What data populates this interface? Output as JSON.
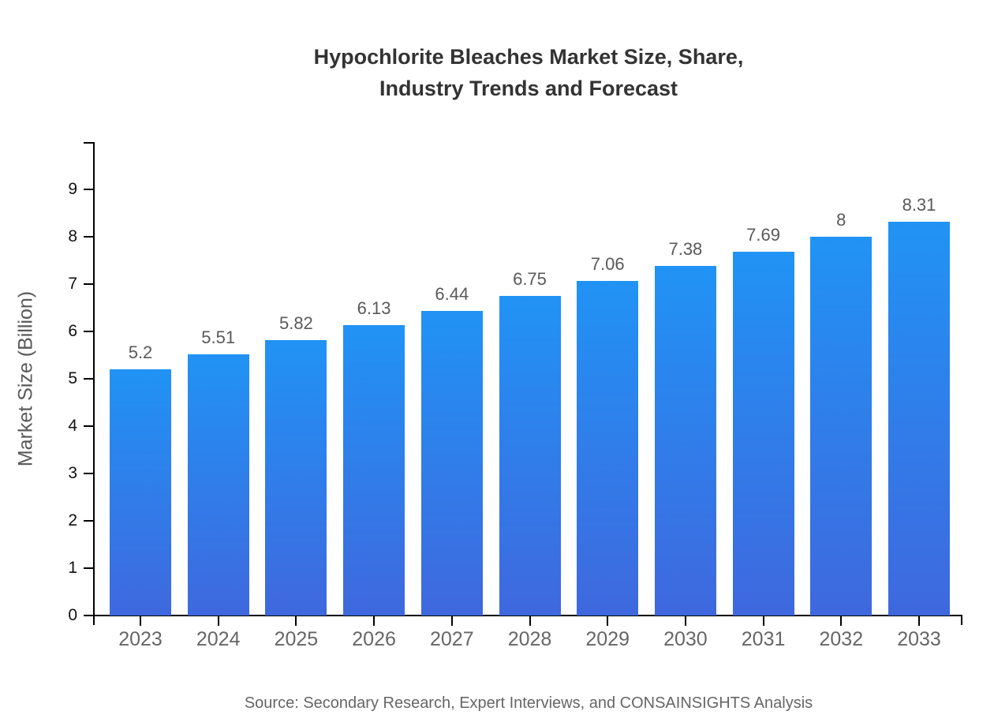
{
  "title": {
    "line1": "Hypochlorite Bleaches Market Size, Share,",
    "line2": "Industry Trends and Forecast"
  },
  "source": "Source: Secondary Research, Expert Interviews, and CONSAINSIGHTS Analysis",
  "colors": {
    "bar_gradient_top": "#2193F5",
    "bar_gradient_bottom": "#3F68DE",
    "axis": "#000000",
    "title_text": "#333333",
    "y_tick_label": "#111111",
    "x_tick_label": "#666666",
    "value_label": "#595959",
    "source_text": "#666666",
    "background": "#ffffff"
  },
  "chart_data": {
    "type": "bar",
    "title": "Hypochlorite Bleaches Market Size, Share, Industry Trends and Forecast",
    "xlabel": "",
    "ylabel": "Market Size (Billion)",
    "categories": [
      "2023",
      "2024",
      "2025",
      "2026",
      "2027",
      "2028",
      "2029",
      "2030",
      "2031",
      "2032",
      "2033"
    ],
    "values": [
      5.2,
      5.51,
      5.82,
      6.13,
      6.44,
      6.75,
      7.06,
      7.38,
      7.69,
      8,
      8.31
    ],
    "value_labels": [
      "5.2",
      "5.51",
      "5.82",
      "6.13",
      "6.44",
      "6.75",
      "7.06",
      "7.38",
      "7.69",
      "8",
      "8.31"
    ],
    "yticks": [
      0,
      1,
      2,
      3,
      4,
      5,
      6,
      7,
      8,
      9
    ],
    "ylim": [
      0,
      10
    ],
    "grid": false,
    "legend": false
  }
}
